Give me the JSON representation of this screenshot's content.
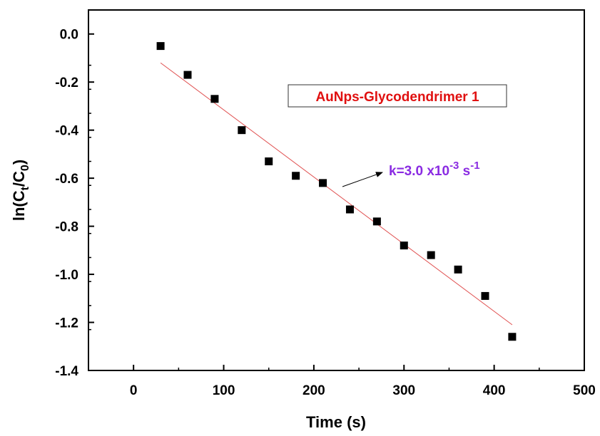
{
  "chart_data": {
    "type": "scatter",
    "xlabel": "Time (s)",
    "ylabel": "ln(Ct/C0)",
    "ylabel_parts": {
      "prefix": "ln(C",
      "sub1": "t",
      "mid": "/C",
      "sub2": "0",
      "suffix": ")"
    },
    "xlim": [
      -50,
      500
    ],
    "ylim": [
      -1.4,
      0.1
    ],
    "x_ticks": [
      0,
      100,
      200,
      300,
      400,
      500
    ],
    "x_tick_labels": [
      "0",
      "100",
      "200",
      "300",
      "400",
      "500"
    ],
    "y_ticks": [
      0.0,
      -0.2,
      -0.4,
      -0.6,
      -0.8,
      -1.0,
      -1.2,
      -1.4
    ],
    "y_tick_labels": [
      "0.0",
      "-0.2",
      "-0.4",
      "-0.6",
      "-0.8",
      "-1.0",
      "-1.2",
      "-1.4"
    ],
    "grid": false,
    "series": [
      {
        "name": "AuNps-Glycodendrimer 1",
        "marker": "square",
        "color": "#000000",
        "x": [
          30,
          60,
          90,
          120,
          150,
          180,
          210,
          240,
          270,
          300,
          330,
          360,
          390,
          420
        ],
        "y": [
          -0.05,
          -0.17,
          -0.27,
          -0.4,
          -0.53,
          -0.59,
          -0.62,
          -0.73,
          -0.78,
          -0.88,
          -0.92,
          -0.98,
          -1.09,
          -1.26
        ]
      }
    ],
    "fit_line": {
      "color": "#e05050",
      "x": [
        30,
        420
      ],
      "y": [
        -0.12,
        -1.21
      ]
    },
    "legend": {
      "text": "AuNps-Glycodendrimer 1",
      "color": "#e01010",
      "placement": "top-right"
    },
    "annotation": {
      "text_main": "k=3.0 x10",
      "exp1": "-3",
      "text_unit": " s",
      "exp2": "-1",
      "color": "#8a2be2",
      "arrow_to": [
        210,
        -0.63
      ]
    }
  }
}
